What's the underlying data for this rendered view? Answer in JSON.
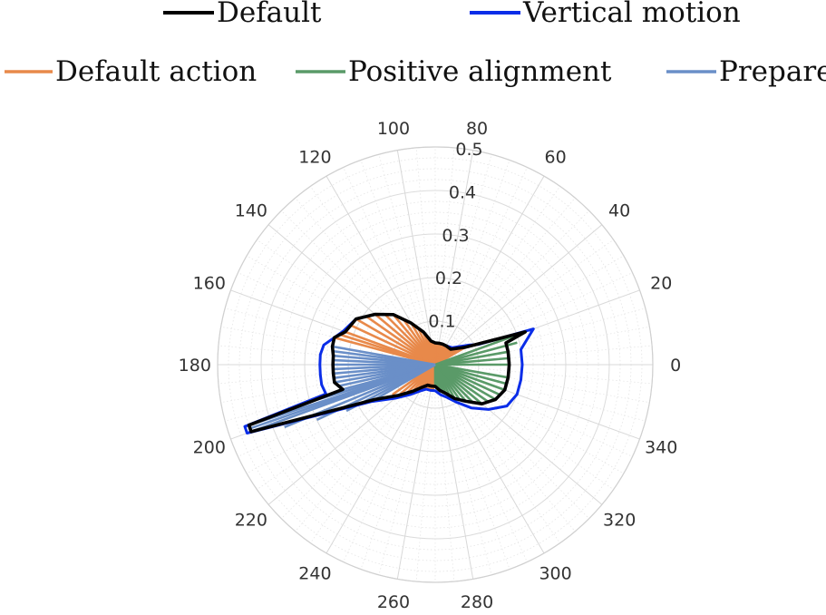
{
  "chart_data": {
    "type": "polar",
    "title": "",
    "angle_unit": "degrees",
    "angle_ticks": [
      0,
      20,
      40,
      60,
      80,
      100,
      120,
      140,
      160,
      180,
      200,
      220,
      240,
      260,
      280,
      300,
      320,
      340
    ],
    "radial_ticks": [
      0.1,
      0.2,
      0.3,
      0.4,
      0.5
    ],
    "rlim": [
      0,
      0.5
    ],
    "grid": true,
    "legend": {
      "placement": "top",
      "entries": [
        "Default",
        "Vertical motion",
        "Default action",
        "Positive alignment",
        "Prepare"
      ]
    },
    "colors": {
      "Default": "#000000",
      "Vertical motion": "#0a2de8",
      "Default action": "#e8894a",
      "Positive alignment": "#5a9a68",
      "Prepare": "#6a8fc8"
    },
    "series": [
      {
        "name": "Default",
        "style": "closed-line",
        "theta": [
          0,
          10,
          17,
          20,
          30,
          45,
          60,
          70,
          80,
          90,
          100,
          110,
          120,
          130,
          140,
          150,
          160,
          165,
          170,
          175,
          180,
          185,
          190,
          195,
          198,
          200,
          210,
          220,
          230,
          240,
          250,
          260,
          270,
          280,
          290,
          300,
          310,
          320,
          330,
          340,
          350
        ],
        "r": [
          0.17,
          0.17,
          0.17,
          0.22,
          0.08,
          0.05,
          0.05,
          0.05,
          0.05,
          0.05,
          0.055,
          0.08,
          0.11,
          0.15,
          0.18,
          0.21,
          0.22,
          0.24,
          0.24,
          0.235,
          0.235,
          0.235,
          0.235,
          0.22,
          0.45,
          0.45,
          0.16,
          0.11,
          0.08,
          0.06,
          0.05,
          0.05,
          0.05,
          0.06,
          0.07,
          0.09,
          0.11,
          0.14,
          0.16,
          0.17,
          0.17
        ]
      },
      {
        "name": "Vertical motion",
        "style": "closed-line",
        "theta": [
          0,
          10,
          20,
          25,
          30,
          45,
          60,
          70,
          80,
          90,
          100,
          110,
          120,
          130,
          140,
          150,
          160,
          165,
          170,
          175,
          180,
          185,
          190,
          195,
          198,
          200,
          210,
          220,
          230,
          240,
          250,
          260,
          270,
          280,
          290,
          300,
          310,
          320,
          330,
          340,
          350
        ],
        "r": [
          0.2,
          0.2,
          0.24,
          0.11,
          0.09,
          0.055,
          0.05,
          0.05,
          0.05,
          0.05,
          0.055,
          0.08,
          0.11,
          0.15,
          0.18,
          0.21,
          0.225,
          0.24,
          0.26,
          0.265,
          0.265,
          0.265,
          0.265,
          0.26,
          0.46,
          0.46,
          0.17,
          0.12,
          0.09,
          0.07,
          0.06,
          0.06,
          0.06,
          0.07,
          0.08,
          0.1,
          0.13,
          0.16,
          0.19,
          0.2,
          0.2
        ]
      },
      {
        "name": "Default action",
        "style": "radial-lines",
        "theta": [
          30,
          40,
          50,
          60,
          70,
          80,
          90,
          100,
          110,
          120,
          130,
          140,
          150,
          160,
          165,
          215,
          225,
          235,
          245,
          255,
          265
        ],
        "r": [
          0.08,
          0.06,
          0.055,
          0.05,
          0.05,
          0.05,
          0.05,
          0.055,
          0.08,
          0.11,
          0.15,
          0.18,
          0.21,
          0.22,
          0.24,
          0.12,
          0.1,
          0.08,
          0.065,
          0.06,
          0.06
        ]
      },
      {
        "name": "Positive alignment",
        "style": "radial-lines",
        "theta": [
          270,
          280,
          290,
          300,
          310,
          320,
          330,
          340,
          350,
          0,
          10,
          20
        ],
        "r": [
          0.05,
          0.06,
          0.07,
          0.09,
          0.11,
          0.14,
          0.16,
          0.17,
          0.17,
          0.17,
          0.17,
          0.22
        ]
      },
      {
        "name": "Prepare",
        "style": "radial-lines",
        "theta": [
          170,
          175,
          180,
          185,
          190,
          195,
          198,
          200,
          205,
          210
        ],
        "r": [
          0.24,
          0.235,
          0.235,
          0.235,
          0.235,
          0.22,
          0.45,
          0.45,
          0.3,
          0.16
        ]
      }
    ]
  }
}
